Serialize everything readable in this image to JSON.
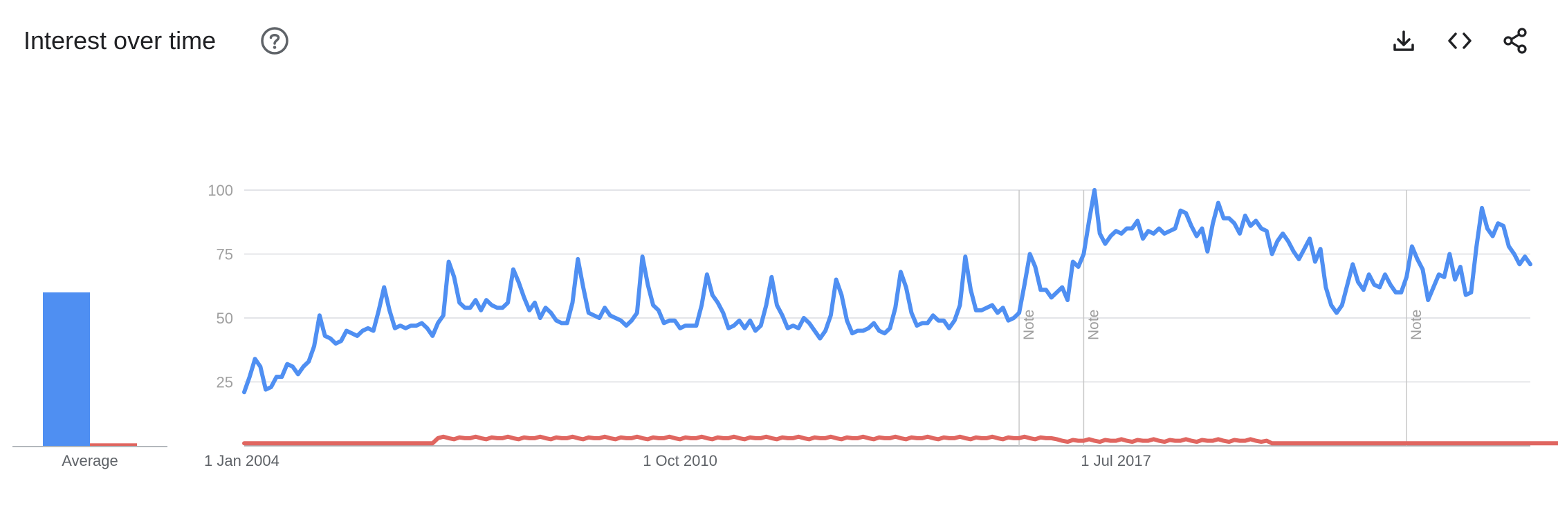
{
  "header": {
    "title": "Interest over time",
    "icons": [
      "help-icon",
      "download-icon",
      "embed-icon",
      "share-icon"
    ]
  },
  "colors": {
    "series1": "#4f8ff2",
    "series2": "#e06660",
    "grid": "#dadce0",
    "note_line": "#c8c8c8"
  },
  "chart_data": [
    {
      "type": "bar",
      "categories": [
        "Average"
      ],
      "series": [
        {
          "values": [
            60
          ]
        },
        {
          "values": [
            1
          ]
        }
      ],
      "ylim": [
        0,
        100
      ]
    },
    {
      "type": "line",
      "x_start": "1 Jan 2004",
      "x_end": "1 Oct 2023",
      "x_step": "month",
      "x_tick_labels": [
        "1 Jan 2004",
        "1 Oct 2010",
        "1 Jul 2017"
      ],
      "y_ticks": [
        25,
        50,
        75,
        100
      ],
      "ylim": [
        0,
        100
      ],
      "grid": true,
      "notes": [
        {
          "label": "Note",
          "x": "2016-01"
        },
        {
          "label": "Note",
          "x": "2017-01"
        },
        {
          "label": "Note",
          "x": "2022-01"
        }
      ],
      "series": [
        {
          "values": [
            21,
            27,
            34,
            31,
            22,
            23,
            27,
            27,
            32,
            31,
            28,
            31,
            33,
            39,
            51,
            43,
            42,
            40,
            41,
            45,
            44,
            43,
            45,
            46,
            45,
            53,
            62,
            53,
            46,
            47,
            46,
            47,
            47,
            48,
            46,
            43,
            48,
            51,
            72,
            66,
            56,
            54,
            54,
            57,
            53,
            57,
            55,
            54,
            54,
            56,
            69,
            64,
            58,
            53,
            56,
            50,
            54,
            52,
            49,
            48,
            48,
            56,
            73,
            62,
            52,
            51,
            50,
            54,
            51,
            50,
            49,
            47,
            49,
            52,
            74,
            63,
            55,
            53,
            48,
            49,
            49,
            46,
            47,
            47,
            47,
            55,
            67,
            59,
            56,
            52,
            46,
            47,
            49,
            46,
            49,
            45,
            47,
            55,
            66,
            55,
            51,
            46,
            47,
            46,
            50,
            48,
            45,
            42,
            45,
            51,
            65,
            59,
            49,
            44,
            45,
            45,
            46,
            48,
            45,
            44,
            46,
            54,
            68,
            62,
            52,
            47,
            48,
            48,
            51,
            49,
            49,
            46,
            49,
            55,
            74,
            61,
            53,
            53,
            54,
            55,
            52,
            54,
            49,
            50,
            52,
            63,
            75,
            70,
            61,
            61,
            58,
            60,
            62,
            57,
            72,
            70,
            75,
            88,
            100,
            83,
            79,
            82,
            84,
            83,
            85,
            85,
            88,
            81,
            84,
            83,
            85,
            83,
            84,
            85,
            92,
            91,
            86,
            82,
            85,
            76,
            87,
            95,
            89,
            89,
            87,
            83,
            90,
            86,
            88,
            85,
            84,
            75,
            80,
            83,
            80,
            76,
            73,
            77,
            81,
            72,
            77,
            62,
            55,
            52,
            55,
            63,
            71,
            64,
            61,
            67,
            63,
            62,
            67,
            63,
            60,
            60,
            66,
            78,
            73,
            69,
            57,
            62,
            67,
            66,
            75,
            65,
            70,
            59,
            60,
            78,
            93,
            85,
            82,
            87,
            86,
            78,
            75,
            71,
            74,
            71
          ]
        },
        {
          "values": [
            1,
            1,
            1,
            1,
            1,
            1,
            1,
            1,
            1,
            1,
            1,
            1,
            1,
            1,
            1,
            1,
            1,
            1,
            1,
            1,
            1,
            1,
            1,
            1,
            1,
            1,
            1,
            1,
            1,
            1,
            1,
            1,
            1,
            1,
            1,
            1,
            1,
            1,
            1,
            1,
            1,
            1,
            1,
            1,
            1,
            1,
            1,
            1,
            1,
            1,
            1,
            1,
            1,
            1,
            1,
            1,
            1,
            1,
            1,
            1,
            1,
            1,
            1,
            1,
            1,
            1,
            1,
            1,
            1,
            1,
            1,
            1,
            1,
            1,
            1,
            1,
            1,
            1,
            1,
            1,
            1,
            1,
            1,
            1,
            1,
            1,
            1,
            1,
            1,
            1,
            1,
            1,
            1,
            1,
            1,
            1,
            1,
            1,
            1,
            1,
            1,
            1,
            1,
            1,
            1,
            1,
            1,
            1,
            1,
            1,
            1,
            1,
            1,
            1,
            1,
            1,
            1,
            1,
            1,
            1,
            1,
            1,
            1,
            1,
            1,
            1,
            1,
            1,
            1,
            1,
            1,
            1,
            1,
            1,
            1,
            1,
            1,
            1,
            1,
            1,
            1,
            1,
            1,
            1,
            1,
            1,
            1,
            1,
            1,
            1,
            1,
            1,
            1,
            1,
            1,
            1,
            1,
            1,
            1,
            1,
            1,
            1,
            1,
            1,
            1,
            1,
            1,
            1,
            1,
            1,
            1,
            1,
            1,
            1,
            1,
            1,
            1,
            1,
            1,
            1,
            1,
            1,
            1,
            1,
            1,
            1,
            1,
            1,
            1,
            1,
            1,
            1,
            1,
            1,
            1,
            1,
            1,
            1,
            1,
            1,
            1,
            1,
            1,
            1,
            1,
            1,
            1,
            1,
            1,
            1,
            1,
            1,
            1,
            1,
            1,
            1,
            1,
            1,
            1,
            1,
            1,
            1,
            1,
            1,
            1,
            1,
            1,
            1,
            1,
            1,
            1,
            1,
            1,
            1,
            1,
            1,
            1,
            1,
            1,
            1,
            1,
            1,
            1,
            1,
            1,
            1,
            1,
            1
          ],
          "bumps": [
            {
              "from": 24,
              "to": 35,
              "value": 1
            },
            {
              "from": 36,
              "to": 150,
              "value": 3
            },
            {
              "from": 151,
              "to": 170,
              "value": 2
            },
            {
              "from": 171,
              "to": 190,
              "value": 2
            }
          ]
        }
      ]
    }
  ]
}
